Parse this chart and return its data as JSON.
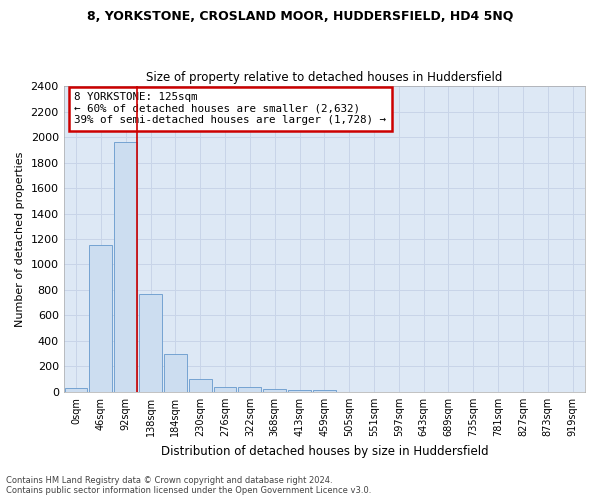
{
  "title1": "8, YORKSTONE, CROSLAND MOOR, HUDDERSFIELD, HD4 5NQ",
  "title2": "Size of property relative to detached houses in Huddersfield",
  "xlabel": "Distribution of detached houses by size in Huddersfield",
  "ylabel": "Number of detached properties",
  "categories": [
    "0sqm",
    "46sqm",
    "92sqm",
    "138sqm",
    "184sqm",
    "230sqm",
    "276sqm",
    "322sqm",
    "368sqm",
    "413sqm",
    "459sqm",
    "505sqm",
    "551sqm",
    "597sqm",
    "643sqm",
    "689sqm",
    "735sqm",
    "781sqm",
    "827sqm",
    "873sqm",
    "919sqm"
  ],
  "values": [
    30,
    1150,
    1960,
    770,
    300,
    100,
    42,
    35,
    22,
    15,
    12,
    0,
    0,
    0,
    0,
    0,
    0,
    0,
    0,
    0,
    0
  ],
  "bar_color": "#ccddf0",
  "bar_edge_color": "#6699cc",
  "vline_color": "#cc0000",
  "annotation_text": "8 YORKSTONE: 125sqm\n← 60% of detached houses are smaller (2,632)\n39% of semi-detached houses are larger (1,728) →",
  "annotation_box_color": "#cc0000",
  "ylim": [
    0,
    2400
  ],
  "yticks": [
    0,
    200,
    400,
    600,
    800,
    1000,
    1200,
    1400,
    1600,
    1800,
    2000,
    2200,
    2400
  ],
  "grid_color": "#c8d4e8",
  "bg_color": "#dde8f5",
  "footnote1": "Contains HM Land Registry data © Crown copyright and database right 2024.",
  "footnote2": "Contains public sector information licensed under the Open Government Licence v3.0."
}
